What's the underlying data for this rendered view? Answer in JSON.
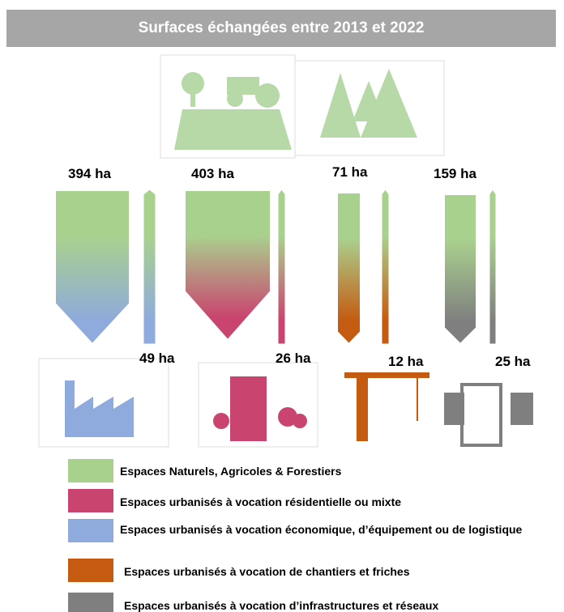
{
  "title": "Surfaces échangées entre 2013 et 2022",
  "flows": [
    {
      "total": "394 ha",
      "urban": "49 ha"
    },
    {
      "total": "403 ha",
      "urban": "26 ha"
    },
    {
      "total": "71 ha",
      "urban": "12 ha"
    },
    {
      "total": "159 ha",
      "urban": "25 ha"
    }
  ],
  "legend": [
    {
      "label": "Espaces Naturels, Agricoles & Forestiers",
      "color": "#a9d18e"
    },
    {
      "label": "Espaces urbanisés à vocation résidentielle ou mixte",
      "color": "#c9456f"
    },
    {
      "label": "Espaces urbanisés à vocation économique,  d’équipement ou de logistique",
      "color": "#8faadc"
    },
    {
      "label": "Espaces urbanisés à vocation de chantiers et friches",
      "color": "#c55a11"
    },
    {
      "label": "Espaces urbanisés à vocation d’infrastructures et réseaux",
      "color": "#7f7f7f"
    }
  ]
}
